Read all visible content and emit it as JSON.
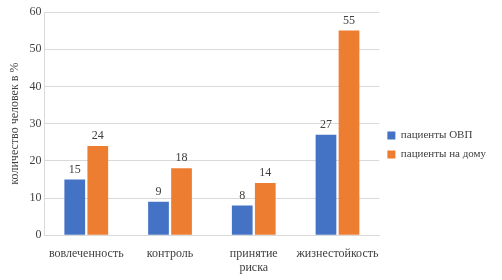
{
  "chart_data": {
    "type": "bar",
    "y_label": "количество человек в %",
    "categories": [
      "вовлеченность",
      "контроль",
      "принятие риска",
      "жизнестойкость"
    ],
    "series": [
      {
        "name": "пациенты ОВП",
        "color": "#4472c4",
        "values": [
          15,
          9,
          8,
          27
        ]
      },
      {
        "name": "пациенты на дому",
        "color": "#ed7d31",
        "values": [
          24,
          18,
          14,
          55
        ]
      }
    ],
    "ylim": [
      0,
      60
    ],
    "yticks": [
      0,
      10,
      20,
      30,
      40,
      50,
      60
    ],
    "grid": true,
    "legend": "right",
    "data_labels": true
  }
}
